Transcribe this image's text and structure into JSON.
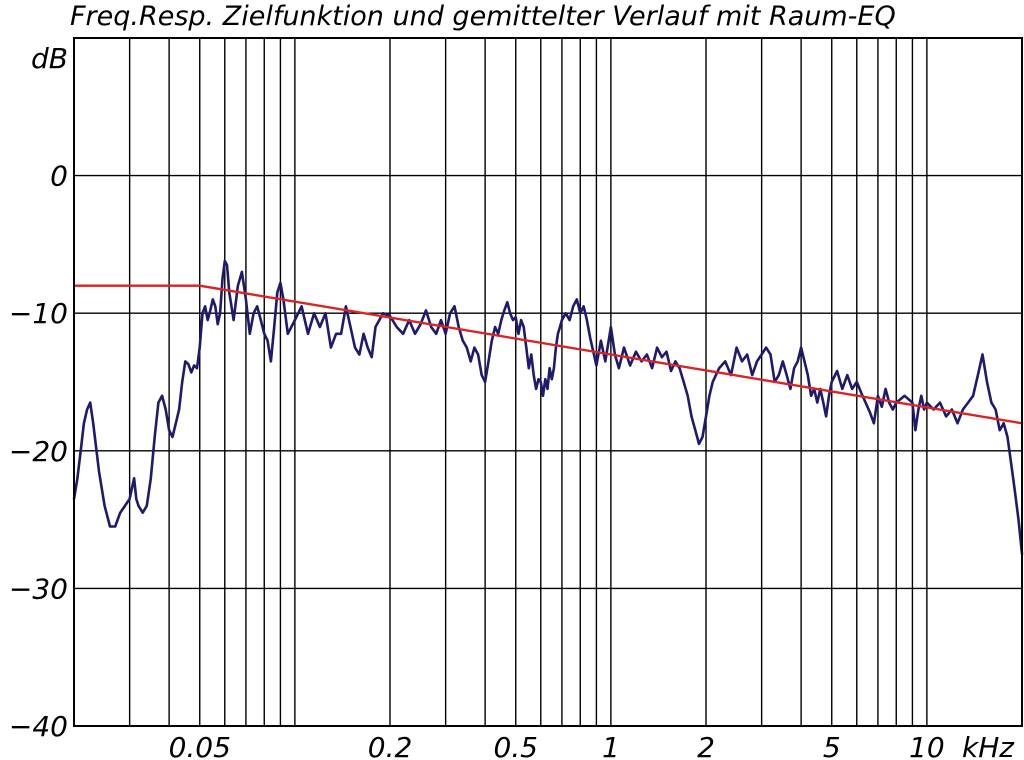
{
  "chart_data": {
    "type": "line",
    "title": "Freq.Resp. Zielfunktion und gemittelter Verlauf mit Raum-EQ",
    "ylabel": "dB",
    "xlabel": "kHz",
    "x_scale": "log",
    "xlim": [
      0.02,
      20
    ],
    "ylim": [
      -40,
      10
    ],
    "grid": true,
    "x_gridlines": [
      0.03,
      0.04,
      0.05,
      0.06,
      0.07,
      0.08,
      0.09,
      0.1,
      0.2,
      0.3,
      0.4,
      0.5,
      0.6,
      0.7,
      0.8,
      0.9,
      1,
      2,
      3,
      4,
      5,
      6,
      7,
      8,
      9,
      10
    ],
    "y_gridlines": [
      0,
      -10,
      -20,
      -30
    ],
    "x_ticks": [
      {
        "value": 0.05,
        "label": "0.05"
      },
      {
        "value": 0.2,
        "label": "0.2"
      },
      {
        "value": 0.5,
        "label": "0.5"
      },
      {
        "value": 1,
        "label": "1"
      },
      {
        "value": 2,
        "label": "2"
      },
      {
        "value": 5,
        "label": "5"
      },
      {
        "value": 10,
        "label": "10"
      }
    ],
    "y_ticks": [
      {
        "value": 0,
        "label": "0"
      },
      {
        "value": -10,
        "label": "−10"
      },
      {
        "value": -20,
        "label": "−20"
      },
      {
        "value": -30,
        "label": "−30"
      },
      {
        "value": -40,
        "label": "−40"
      }
    ],
    "series": [
      {
        "color": "#1e1a6e",
        "points": [
          [
            0.02,
            -23.5
          ],
          [
            0.0205,
            -22
          ],
          [
            0.021,
            -20
          ],
          [
            0.0215,
            -18
          ],
          [
            0.022,
            -17
          ],
          [
            0.0225,
            -16.5
          ],
          [
            0.023,
            -18
          ],
          [
            0.024,
            -21.5
          ],
          [
            0.025,
            -24
          ],
          [
            0.026,
            -25.5
          ],
          [
            0.027,
            -25.5
          ],
          [
            0.028,
            -24.5
          ],
          [
            0.029,
            -24
          ],
          [
            0.03,
            -23.5
          ],
          [
            0.031,
            -22
          ],
          [
            0.0315,
            -23.5
          ],
          [
            0.032,
            -24
          ],
          [
            0.033,
            -24.5
          ],
          [
            0.034,
            -24
          ],
          [
            0.035,
            -22
          ],
          [
            0.036,
            -19
          ],
          [
            0.037,
            -16.5
          ],
          [
            0.038,
            -16
          ],
          [
            0.039,
            -17
          ],
          [
            0.04,
            -18.5
          ],
          [
            0.041,
            -19
          ],
          [
            0.042,
            -18
          ],
          [
            0.043,
            -17
          ],
          [
            0.044,
            -15
          ],
          [
            0.045,
            -13.5
          ],
          [
            0.046,
            -13.7
          ],
          [
            0.047,
            -14.3
          ],
          [
            0.048,
            -13.8
          ],
          [
            0.049,
            -14
          ],
          [
            0.05,
            -12.5
          ],
          [
            0.051,
            -10
          ],
          [
            0.052,
            -9.5
          ],
          [
            0.053,
            -10.5
          ],
          [
            0.054,
            -9.8
          ],
          [
            0.055,
            -9
          ],
          [
            0.056,
            -9.5
          ],
          [
            0.057,
            -10.8
          ],
          [
            0.058,
            -10
          ],
          [
            0.059,
            -7.5
          ],
          [
            0.06,
            -6.2
          ],
          [
            0.061,
            -6.5
          ],
          [
            0.062,
            -8.5
          ],
          [
            0.064,
            -10.5
          ],
          [
            0.066,
            -8
          ],
          [
            0.068,
            -7
          ],
          [
            0.07,
            -9
          ],
          [
            0.072,
            -11.5
          ],
          [
            0.074,
            -10
          ],
          [
            0.076,
            -9.5
          ],
          [
            0.078,
            -10.5
          ],
          [
            0.08,
            -11.5
          ],
          [
            0.082,
            -12
          ],
          [
            0.084,
            -13.5
          ],
          [
            0.086,
            -11
          ],
          [
            0.088,
            -8.5
          ],
          [
            0.09,
            -7.8
          ],
          [
            0.092,
            -9
          ],
          [
            0.095,
            -11.5
          ],
          [
            0.1,
            -10.5
          ],
          [
            0.105,
            -9.5
          ],
          [
            0.11,
            -11.5
          ],
          [
            0.115,
            -10
          ],
          [
            0.12,
            -11
          ],
          [
            0.125,
            -10
          ],
          [
            0.13,
            -12.5
          ],
          [
            0.135,
            -11.5
          ],
          [
            0.14,
            -11.5
          ],
          [
            0.145,
            -9.5
          ],
          [
            0.15,
            -11
          ],
          [
            0.155,
            -12.5
          ],
          [
            0.16,
            -13
          ],
          [
            0.165,
            -11.5
          ],
          [
            0.17,
            -12.5
          ],
          [
            0.175,
            -13.2
          ],
          [
            0.18,
            -11
          ],
          [
            0.185,
            -10.5
          ],
          [
            0.19,
            -10
          ],
          [
            0.2,
            -10.2
          ],
          [
            0.21,
            -11
          ],
          [
            0.22,
            -11.5
          ],
          [
            0.23,
            -10.5
          ],
          [
            0.24,
            -11.5
          ],
          [
            0.25,
            -10.8
          ],
          [
            0.26,
            -9.8
          ],
          [
            0.27,
            -11
          ],
          [
            0.28,
            -11.5
          ],
          [
            0.29,
            -10.5
          ],
          [
            0.3,
            -11.5
          ],
          [
            0.31,
            -10
          ],
          [
            0.32,
            -9.5
          ],
          [
            0.33,
            -11
          ],
          [
            0.34,
            -12
          ],
          [
            0.35,
            -12.5
          ],
          [
            0.36,
            -13.5
          ],
          [
            0.37,
            -12.5
          ],
          [
            0.38,
            -13
          ],
          [
            0.39,
            -14.5
          ],
          [
            0.4,
            -15
          ],
          [
            0.41,
            -13.5
          ],
          [
            0.42,
            -12
          ],
          [
            0.43,
            -11
          ],
          [
            0.44,
            -11.5
          ],
          [
            0.45,
            -10.5
          ],
          [
            0.46,
            -9.8
          ],
          [
            0.47,
            -9.2
          ],
          [
            0.48,
            -10
          ],
          [
            0.49,
            -10.5
          ],
          [
            0.5,
            -10.3
          ],
          [
            0.51,
            -11.5
          ],
          [
            0.52,
            -10.5
          ],
          [
            0.53,
            -11
          ],
          [
            0.54,
            -12.5
          ],
          [
            0.55,
            -14
          ],
          [
            0.56,
            -13
          ],
          [
            0.57,
            -14.5
          ],
          [
            0.58,
            -15.5
          ],
          [
            0.59,
            -14.8
          ],
          [
            0.6,
            -15
          ],
          [
            0.61,
            -16
          ],
          [
            0.62,
            -14.8
          ],
          [
            0.63,
            -15.5
          ],
          [
            0.64,
            -14
          ],
          [
            0.65,
            -14.8
          ],
          [
            0.66,
            -14
          ],
          [
            0.67,
            -12.5
          ],
          [
            0.68,
            -11.5
          ],
          [
            0.69,
            -11
          ],
          [
            0.7,
            -10.5
          ],
          [
            0.72,
            -10
          ],
          [
            0.74,
            -10.5
          ],
          [
            0.76,
            -9.5
          ],
          [
            0.78,
            -9
          ],
          [
            0.8,
            -10
          ],
          [
            0.82,
            -9.5
          ],
          [
            0.84,
            -10.5
          ],
          [
            0.86,
            -11.8
          ],
          [
            0.88,
            -12.8
          ],
          [
            0.9,
            -13.8
          ],
          [
            0.93,
            -12
          ],
          [
            0.96,
            -13.5
          ],
          [
            1.0,
            -11
          ],
          [
            1.03,
            -13
          ],
          [
            1.06,
            -14
          ],
          [
            1.1,
            -12.5
          ],
          [
            1.15,
            -13.8
          ],
          [
            1.2,
            -12.8
          ],
          [
            1.25,
            -13.5
          ],
          [
            1.3,
            -13
          ],
          [
            1.35,
            -14
          ],
          [
            1.4,
            -12.5
          ],
          [
            1.45,
            -13.2
          ],
          [
            1.5,
            -12.8
          ],
          [
            1.55,
            -14.2
          ],
          [
            1.6,
            -13.5
          ],
          [
            1.65,
            -14
          ],
          [
            1.7,
            -15
          ],
          [
            1.75,
            -16
          ],
          [
            1.8,
            -17.5
          ],
          [
            1.85,
            -18.5
          ],
          [
            1.9,
            -19.5
          ],
          [
            1.95,
            -19
          ],
          [
            2.0,
            -17.5
          ],
          [
            2.05,
            -16
          ],
          [
            2.1,
            -15
          ],
          [
            2.2,
            -14
          ],
          [
            2.3,
            -13.5
          ],
          [
            2.4,
            -14.5
          ],
          [
            2.5,
            -12.5
          ],
          [
            2.6,
            -13.5
          ],
          [
            2.7,
            -13
          ],
          [
            2.8,
            -14.5
          ],
          [
            2.9,
            -13.5
          ],
          [
            3.0,
            -13
          ],
          [
            3.1,
            -12.5
          ],
          [
            3.2,
            -13
          ],
          [
            3.3,
            -15
          ],
          [
            3.4,
            -14.5
          ],
          [
            3.5,
            -13.5
          ],
          [
            3.6,
            -14.5
          ],
          [
            3.7,
            -15.5
          ],
          [
            3.8,
            -14
          ],
          [
            3.9,
            -13.5
          ],
          [
            4.0,
            -12.5
          ],
          [
            4.1,
            -13.5
          ],
          [
            4.2,
            -14.5
          ],
          [
            4.3,
            -16
          ],
          [
            4.4,
            -15.5
          ],
          [
            4.5,
            -16.5
          ],
          [
            4.6,
            -15.5
          ],
          [
            4.7,
            -16.5
          ],
          [
            4.8,
            -17.5
          ],
          [
            4.9,
            -16
          ],
          [
            5.0,
            -15
          ],
          [
            5.2,
            -14.2
          ],
          [
            5.4,
            -15.5
          ],
          [
            5.6,
            -14.5
          ],
          [
            5.8,
            -15.5
          ],
          [
            6.0,
            -15
          ],
          [
            6.2,
            -15.8
          ],
          [
            6.4,
            -16.5
          ],
          [
            6.6,
            -17.2
          ],
          [
            6.8,
            -18
          ],
          [
            7.0,
            -16
          ],
          [
            7.2,
            -16.8
          ],
          [
            7.4,
            -15.5
          ],
          [
            7.6,
            -16.5
          ],
          [
            7.8,
            -17
          ],
          [
            8.0,
            -16.5
          ],
          [
            8.5,
            -16
          ],
          [
            9.0,
            -16.5
          ],
          [
            9.2,
            -18.5
          ],
          [
            9.4,
            -17
          ],
          [
            9.6,
            -16
          ],
          [
            9.8,
            -17
          ],
          [
            10.0,
            -16.5
          ],
          [
            10.5,
            -17
          ],
          [
            11.0,
            -16.5
          ],
          [
            11.5,
            -17.5
          ],
          [
            12.0,
            -17
          ],
          [
            12.5,
            -18
          ],
          [
            13.0,
            -17
          ],
          [
            13.5,
            -16.5
          ],
          [
            14.0,
            -16
          ],
          [
            14.5,
            -14.5
          ],
          [
            15.0,
            -13
          ],
          [
            15.5,
            -15
          ],
          [
            16.0,
            -16.5
          ],
          [
            16.5,
            -17
          ],
          [
            17.0,
            -18.5
          ],
          [
            17.5,
            -18
          ],
          [
            18.0,
            -19
          ],
          [
            18.5,
            -21
          ],
          [
            19.0,
            -23
          ],
          [
            19.5,
            -25
          ],
          [
            20.0,
            -27.5
          ]
        ]
      },
      {
        "color": "#dd2222",
        "points": [
          [
            0.02,
            -8
          ],
          [
            0.05,
            -8
          ],
          [
            1.0,
            -13
          ],
          [
            20.0,
            -18
          ]
        ]
      }
    ]
  }
}
